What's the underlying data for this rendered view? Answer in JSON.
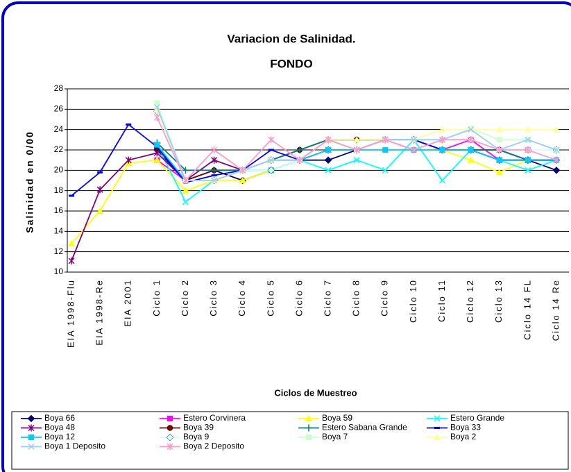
{
  "chart_data": {
    "type": "line",
    "title": "Variacion de Salinidad.",
    "subtitle": "FONDO",
    "x_label": "Ciclos de Muestreo",
    "y_label": "Salinidad en 0/00",
    "categories": [
      "EIA 1998-Flu",
      "EIA 1998-Re",
      "EIA 2001",
      "Ciclo 1",
      "Ciclo 2",
      "Ciclo 3",
      "Ciclo 4",
      "Ciclo 5",
      "Ciclo 6",
      "Ciclo 7",
      "Ciclo 8",
      "Ciclo 9",
      "Ciclo 10",
      "Ciclo 11",
      "Ciclo 12",
      "Ciclo 13",
      "Ciclo 14 FL",
      "Ciclo 14 Re"
    ],
    "ylim": [
      10,
      28
    ],
    "yticks": [
      10,
      12,
      14,
      16,
      18,
      20,
      22,
      24,
      26,
      28
    ],
    "grid": true,
    "legend": "bottom",
    "series": [
      {
        "name": "Boya 66",
        "color": "#000080",
        "marker": "diamond",
        "values": [
          null,
          null,
          null,
          22,
          19,
          20,
          19,
          20,
          21,
          21,
          22,
          23,
          23,
          22,
          22,
          22,
          21,
          20
        ]
      },
      {
        "name": "Estero Corvinera",
        "color": "#ff00ff",
        "marker": "square",
        "values": [
          null,
          null,
          null,
          21,
          19,
          19,
          20,
          21,
          21,
          22,
          22,
          23,
          22,
          22,
          23,
          21,
          21,
          21
        ]
      },
      {
        "name": "Boya 59",
        "color": "#ffff00",
        "marker": "triangle",
        "values": [
          12.8,
          16,
          20.7,
          21,
          18,
          19,
          19,
          20,
          21,
          22,
          22,
          22,
          22,
          22,
          21,
          19.8,
          21,
          21
        ]
      },
      {
        "name": "Estero Grande",
        "color": "#00ffff",
        "marker": "x",
        "values": [
          null,
          null,
          null,
          22.5,
          16.9,
          19,
          20,
          20,
          21,
          20,
          21,
          20,
          23,
          19,
          22,
          21,
          20,
          21
        ]
      },
      {
        "name": "Boya 48",
        "color": "#800080",
        "marker": "star",
        "values": [
          11.1,
          18.1,
          21,
          21.7,
          19,
          21,
          20,
          21,
          21,
          22,
          22,
          23,
          23,
          22,
          22,
          21,
          21,
          21
        ]
      },
      {
        "name": "Boya 39",
        "color": "#800000",
        "marker": "circle",
        "values": [
          null,
          null,
          null,
          22.2,
          19,
          20,
          20,
          21,
          22,
          23,
          23,
          23,
          23,
          22,
          22,
          22,
          21,
          21
        ]
      },
      {
        "name": "Estero Sabana Grande",
        "color": "#008080",
        "marker": "plus",
        "values": [
          null,
          null,
          null,
          22.7,
          20,
          20,
          20,
          21,
          22,
          23,
          23,
          23,
          23,
          22,
          22,
          22,
          21,
          21
        ]
      },
      {
        "name": "Boya 33",
        "color": "#0000ff",
        "marker": "dash",
        "values": [
          17.5,
          19.8,
          24.5,
          22.3,
          18.8,
          19.5,
          20,
          22,
          21,
          23,
          22,
          23,
          23,
          22,
          22,
          21,
          21,
          21
        ]
      },
      {
        "name": "Boya 12",
        "color": "#00ccff",
        "marker": "square",
        "values": [
          null,
          null,
          null,
          22.5,
          19,
          19,
          20,
          20,
          21,
          22,
          22,
          22,
          22,
          22,
          22,
          21,
          21,
          21
        ]
      },
      {
        "name": "Boya 9",
        "color": "#ccffff",
        "marker": "diamond",
        "values": [
          null,
          null,
          null,
          25.8,
          19,
          19,
          20,
          20,
          21,
          23,
          22,
          23,
          23,
          23,
          23,
          22,
          22,
          22
        ]
      },
      {
        "name": "Boya 7",
        "color": "#ccffcc",
        "marker": "square",
        "values": [
          null,
          null,
          null,
          26.6,
          19,
          19,
          20,
          21,
          21,
          23,
          22,
          23,
          23,
          23,
          24.1,
          23,
          23,
          22
        ]
      },
      {
        "name": "Boya 2",
        "color": "#ffff99",
        "marker": "triangle",
        "values": [
          null,
          null,
          null,
          26,
          19,
          19,
          20,
          21,
          21,
          23,
          23,
          23,
          23,
          24,
          24,
          24,
          24,
          24
        ]
      },
      {
        "name": "Boya 1 Deposito",
        "color": "#99ccff",
        "marker": "x",
        "values": [
          null,
          null,
          null,
          26.2,
          19,
          19,
          20,
          21,
          21,
          23,
          22,
          23,
          23,
          23,
          24,
          22,
          23,
          22
        ]
      },
      {
        "name": "Boya 2 Deposito",
        "color": "#ff99cc",
        "marker": "star",
        "values": [
          null,
          null,
          null,
          25.2,
          19,
          22,
          20,
          23,
          21,
          23,
          22,
          23,
          22,
          23,
          23,
          22,
          22,
          21
        ]
      }
    ]
  }
}
